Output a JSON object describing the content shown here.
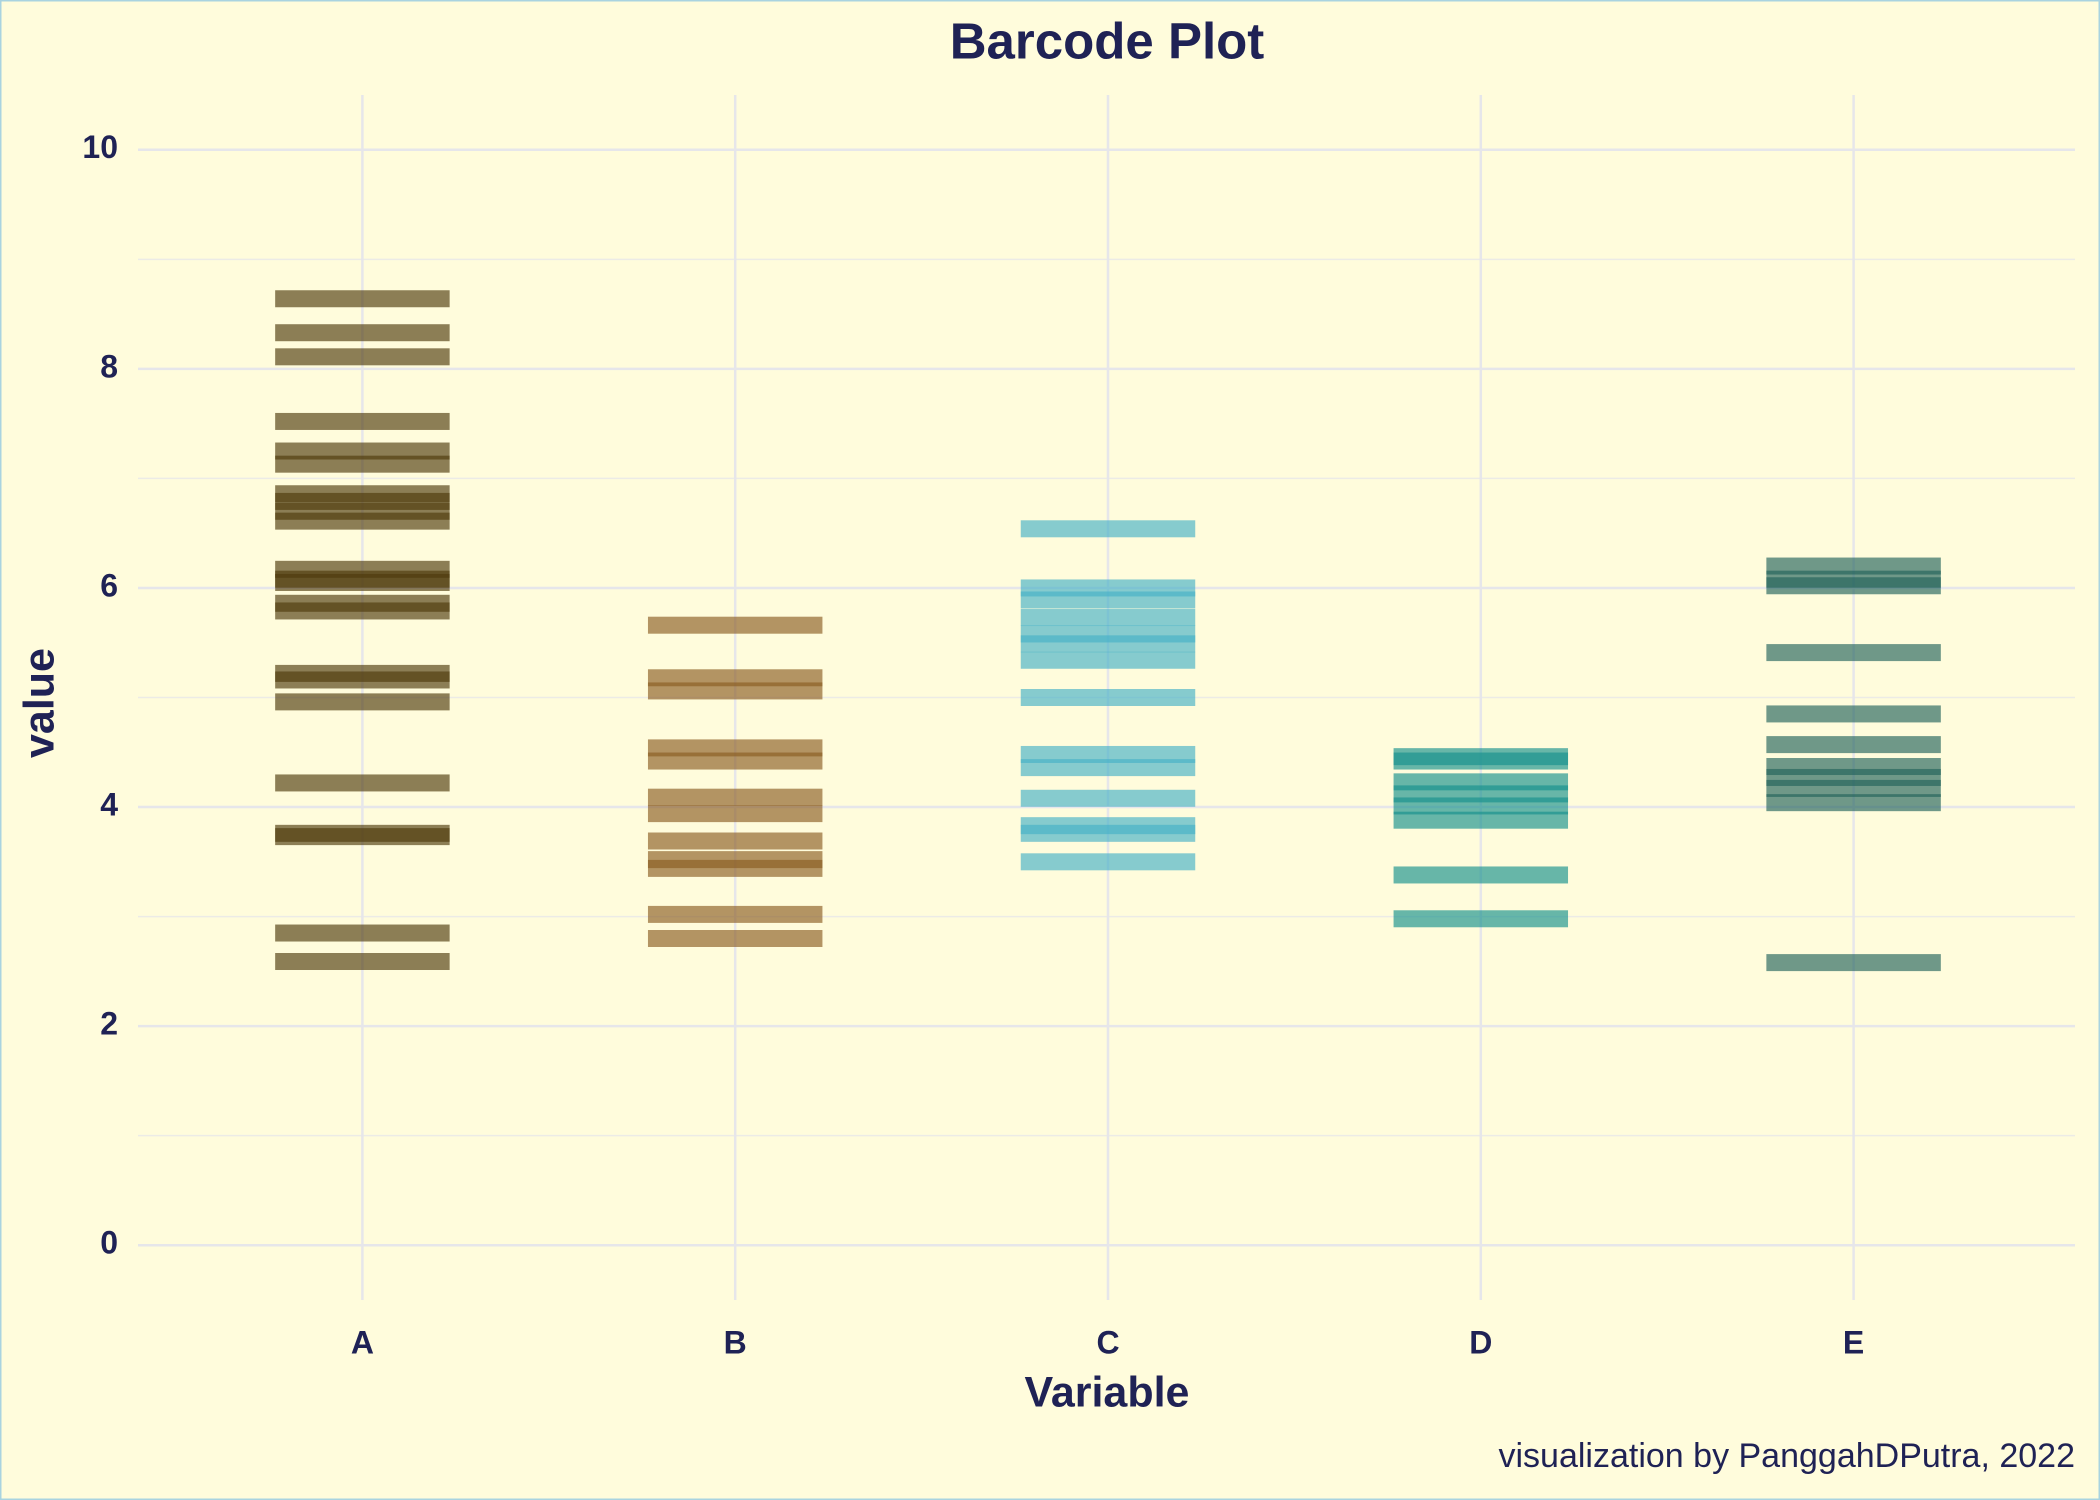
{
  "chart_data": {
    "type": "barcode",
    "title": "Barcode Plot",
    "x_label": "Variable",
    "y_label": "value",
    "caption": "visualization by PanggahDPutra, 2022",
    "categories": [
      "A",
      "B",
      "C",
      "D",
      "E"
    ],
    "values": [
      [
        8.64,
        8.33,
        8.11,
        7.52,
        7.25,
        7.13,
        6.86,
        6.79,
        6.7,
        6.61,
        6.17,
        6.08,
        6.05,
        5.86,
        5.79,
        5.22,
        5.16,
        4.96,
        4.22,
        3.76,
        3.73,
        2.85,
        2.59
      ],
      [
        5.66,
        5.18,
        5.06,
        4.54,
        4.42,
        4.09,
        3.94,
        3.69,
        3.52,
        3.44,
        3.02,
        2.8
      ],
      [
        6.54,
        6.0,
        5.89,
        5.73,
        5.58,
        5.49,
        5.34,
        5.0,
        4.48,
        4.36,
        4.08,
        3.83,
        3.76,
        3.5
      ],
      [
        4.46,
        4.42,
        4.23,
        4.12,
        4.01,
        3.88,
        3.38,
        2.98
      ],
      [
        6.2,
        6.08,
        6.02,
        5.41,
        4.85,
        4.57,
        4.37,
        4.27,
        4.17,
        4.04,
        2.58
      ]
    ],
    "colors": [
      "#4f3a0c",
      "#8a5c22",
      "#45b1c6",
      "#16918c",
      "#22635a"
    ],
    "ylim": [
      -0.5,
      10.5
    ],
    "yticks": [
      0,
      2,
      4,
      6,
      8,
      10
    ],
    "yminorticks": [
      1,
      3,
      5,
      7,
      9
    ],
    "grid": true
  }
}
